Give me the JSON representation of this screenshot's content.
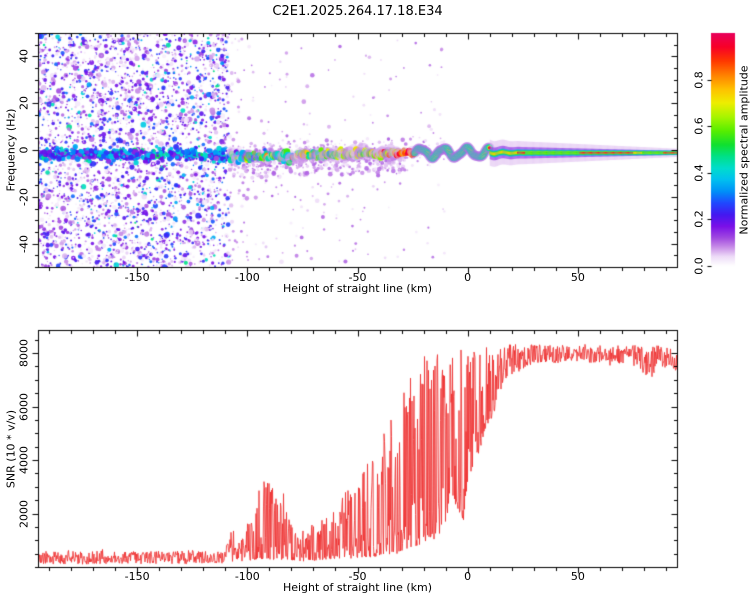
{
  "figure": {
    "title": "C2E1.2025.264.17.18.E34",
    "background": "#ffffff",
    "frame_color": "#000000",
    "text_color": "#000000"
  },
  "chart_data": [
    {
      "type": "heatmap",
      "name": "doppler-spectrogram",
      "title": "C2E1.2025.264.17.18.E34",
      "xlabel": "Height of straight line (km)",
      "ylabel": "Frequency (Hz)",
      "colorbar_label": "Normalized spectral amplitude",
      "xlim": [
        -195,
        95
      ],
      "ylim": [
        -50,
        50
      ],
      "x_major_ticks": [
        -150,
        -100,
        -50,
        0,
        50
      ],
      "x_minor_step": 10,
      "y_major_ticks": [
        -40,
        -20,
        0,
        20,
        40
      ],
      "y_minor_step": 5,
      "colorbar_ticks": [
        0.0,
        0.2,
        0.4,
        0.6,
        0.8
      ],
      "colorbar_range": [
        0,
        1
      ],
      "grid": false,
      "colormap_stops": [
        [
          0.0,
          "#ffffff"
        ],
        [
          0.04,
          "#eedcf8"
        ],
        [
          0.08,
          "#c98fe8"
        ],
        [
          0.12,
          "#a14ae0"
        ],
        [
          0.17,
          "#7a10e8"
        ],
        [
          0.22,
          "#4418f0"
        ],
        [
          0.27,
          "#2048ff"
        ],
        [
          0.32,
          "#0090f8"
        ],
        [
          0.37,
          "#00c0f0"
        ],
        [
          0.42,
          "#00ddcc"
        ],
        [
          0.47,
          "#00e088"
        ],
        [
          0.52,
          "#10e030"
        ],
        [
          0.58,
          "#58ee00"
        ],
        [
          0.64,
          "#a8f500"
        ],
        [
          0.7,
          "#eeee00"
        ],
        [
          0.76,
          "#ffc000"
        ],
        [
          0.82,
          "#ff8000"
        ],
        [
          0.88,
          "#ff3800"
        ],
        [
          0.94,
          "#f80028"
        ],
        [
          1.0,
          "#e8005c"
        ]
      ],
      "noise_region": {
        "x_range": [
          -195,
          -108
        ],
        "freq_range": [
          -50,
          50
        ],
        "amplitude_range": [
          0.02,
          0.45
        ],
        "density": "high"
      },
      "sparse_speckle_region": {
        "x_range": [
          -108,
          -8
        ],
        "amplitude_range": [
          0.02,
          0.12
        ],
        "density": "low, decaying toward +x, concentrated near signal band"
      },
      "wavy_segment": {
        "x_range": [
          -24,
          10
        ],
        "wave_amplitude_hz": 2.0,
        "wave_period_km": 10.5
      },
      "signal_track": [
        [
          -195,
          -2.5,
          4.0,
          0.3
        ],
        [
          -185,
          -2.0,
          4.0,
          0.3
        ],
        [
          -175,
          -2.0,
          4.2,
          0.32
        ],
        [
          -165,
          -2.5,
          4.0,
          0.3
        ],
        [
          -155,
          -2.0,
          4.0,
          0.32
        ],
        [
          -145,
          -2.5,
          4.0,
          0.3
        ],
        [
          -135,
          -2.0,
          4.0,
          0.31
        ],
        [
          -125,
          -2.2,
          4.0,
          0.3
        ],
        [
          -115,
          -2.3,
          4.0,
          0.33
        ],
        [
          -110,
          -2.5,
          3.8,
          0.38
        ],
        [
          -105,
          -2.6,
          3.6,
          0.46
        ],
        [
          -100,
          -2.8,
          3.6,
          0.5
        ],
        [
          -95,
          -3.0,
          3.5,
          0.52
        ],
        [
          -90,
          -2.2,
          3.5,
          0.55
        ],
        [
          -85,
          -2.6,
          3.5,
          0.54
        ],
        [
          -80,
          -3.0,
          3.4,
          0.52
        ],
        [
          -75,
          -2.2,
          3.4,
          0.55
        ],
        [
          -70,
          -1.8,
          3.3,
          0.56
        ],
        [
          -65,
          -2.0,
          3.2,
          0.58
        ],
        [
          -60,
          -1.6,
          3.1,
          0.6
        ],
        [
          -55,
          -2.0,
          3.0,
          0.6
        ],
        [
          -50,
          -1.6,
          3.0,
          0.62
        ],
        [
          -45,
          -1.2,
          2.9,
          0.65
        ],
        [
          -40,
          -1.6,
          2.8,
          0.7
        ],
        [
          -35,
          -1.2,
          2.6,
          0.75
        ],
        [
          -30,
          -1.5,
          2.4,
          0.82
        ],
        [
          -26,
          -1.2,
          2.2,
          0.9
        ],
        [
          -22,
          -1.4,
          2.1,
          0.94
        ],
        [
          -18,
          -1.0,
          2.0,
          0.95
        ],
        [
          -14,
          -1.4,
          2.0,
          0.94
        ],
        [
          -10,
          -1.1,
          1.9,
          0.93
        ],
        [
          -6,
          -1.3,
          1.9,
          0.95
        ],
        [
          -2,
          -1.1,
          1.8,
          0.94
        ],
        [
          2,
          -1.2,
          1.8,
          0.93
        ],
        [
          6,
          -1.1,
          1.8,
          0.92
        ],
        [
          10,
          -1.2,
          1.7,
          0.9
        ],
        [
          15,
          -1.2,
          1.6,
          0.89
        ],
        [
          20,
          -1.2,
          1.6,
          0.88
        ],
        [
          30,
          -1.2,
          1.5,
          0.86
        ],
        [
          40,
          -1.2,
          1.5,
          0.86
        ],
        [
          50,
          -1.2,
          1.4,
          0.88
        ],
        [
          60,
          -1.2,
          1.4,
          0.86
        ],
        [
          70,
          -1.2,
          1.3,
          0.88
        ],
        [
          80,
          -1.2,
          1.3,
          0.86
        ],
        [
          90,
          -1.2,
          1.2,
          0.88
        ],
        [
          95,
          -1.2,
          1.2,
          0.9
        ]
      ],
      "signal_track_columns": [
        "height_km",
        "center_freq_hz",
        "half_width_hz",
        "normalized_amplitude"
      ]
    },
    {
      "type": "line",
      "name": "snr-profile",
      "xlabel": "Height of straight line (km)",
      "ylabel": "SNR (10 * v/v)",
      "xlim": [
        -195,
        95
      ],
      "ylim": [
        0,
        8860
      ],
      "x_major_ticks": [
        -150,
        -100,
        -50,
        0,
        50
      ],
      "x_minor_step": 10,
      "y_major_ticks": [
        2000,
        4000,
        6000,
        8000
      ],
      "y_minor_step": 500,
      "grid": false,
      "line_color": "#ee3333",
      "snr_envelope_columns": [
        "height_km",
        "snr_min",
        "snr_max"
      ],
      "snr_envelope": [
        [
          -195,
          100,
          550
        ],
        [
          -190,
          120,
          600
        ],
        [
          -185,
          100,
          560
        ],
        [
          -180,
          120,
          640
        ],
        [
          -175,
          100,
          560
        ],
        [
          -170,
          110,
          600
        ],
        [
          -165,
          120,
          680
        ],
        [
          -160,
          100,
          590
        ],
        [
          -155,
          110,
          560
        ],
        [
          -150,
          120,
          610
        ],
        [
          -145,
          100,
          650
        ],
        [
          -140,
          110,
          590
        ],
        [
          -135,
          120,
          560
        ],
        [
          -130,
          100,
          610
        ],
        [
          -125,
          110,
          650
        ],
        [
          -120,
          100,
          600
        ],
        [
          -115,
          110,
          600
        ],
        [
          -110,
          150,
          780
        ],
        [
          -107,
          200,
          1500
        ],
        [
          -104,
          160,
          900
        ],
        [
          -101,
          220,
          1300
        ],
        [
          -98,
          250,
          2200
        ],
        [
          -95,
          280,
          2900
        ],
        [
          -92,
          300,
          3300
        ],
        [
          -89,
          280,
          3100
        ],
        [
          -86,
          260,
          2500
        ],
        [
          -83,
          300,
          3000
        ],
        [
          -80,
          260,
          2200
        ],
        [
          -77,
          220,
          1500
        ],
        [
          -74,
          200,
          1300
        ],
        [
          -71,
          240,
          1700
        ],
        [
          -68,
          240,
          1500
        ],
        [
          -65,
          280,
          2000
        ],
        [
          -62,
          300,
          2500
        ],
        [
          -59,
          320,
          3000
        ],
        [
          -56,
          340,
          2700
        ],
        [
          -53,
          320,
          3300
        ],
        [
          -50,
          340,
          3000
        ],
        [
          -47,
          380,
          3600
        ],
        [
          -44,
          360,
          4100
        ],
        [
          -41,
          400,
          3800
        ],
        [
          -38,
          480,
          5000
        ],
        [
          -35,
          420,
          5600
        ],
        [
          -32,
          500,
          4700
        ],
        [
          -29,
          600,
          6500
        ],
        [
          -26,
          700,
          7800
        ],
        [
          -23,
          800,
          6400
        ],
        [
          -20,
          900,
          8300
        ],
        [
          -17,
          1100,
          7300
        ],
        [
          -14,
          1000,
          8400
        ],
        [
          -11,
          1500,
          7700
        ],
        [
          -8,
          2100,
          8100
        ],
        [
          -5,
          2300,
          7800
        ],
        [
          -2,
          1700,
          8300
        ],
        [
          1,
          3400,
          8200
        ],
        [
          4,
          4000,
          8400
        ],
        [
          7,
          4800,
          8300
        ],
        [
          10,
          5400,
          8200
        ],
        [
          13,
          6000,
          8400
        ],
        [
          16,
          6500,
          8300
        ],
        [
          19,
          6900,
          8400
        ],
        [
          22,
          7200,
          8350
        ],
        [
          25,
          7400,
          8300
        ],
        [
          30,
          7600,
          8350
        ],
        [
          35,
          7650,
          8300
        ],
        [
          40,
          7600,
          8350
        ],
        [
          45,
          7650,
          8320
        ],
        [
          50,
          7600,
          8300
        ],
        [
          55,
          7650,
          8350
        ],
        [
          60,
          7600,
          8300
        ],
        [
          65,
          7500,
          8250
        ],
        [
          70,
          7600,
          8320
        ],
        [
          75,
          7550,
          8300
        ],
        [
          80,
          7200,
          8250
        ],
        [
          83,
          7000,
          8200
        ],
        [
          86,
          7450,
          8300
        ],
        [
          90,
          7400,
          8250
        ],
        [
          95,
          7300,
          8100
        ]
      ]
    }
  ]
}
